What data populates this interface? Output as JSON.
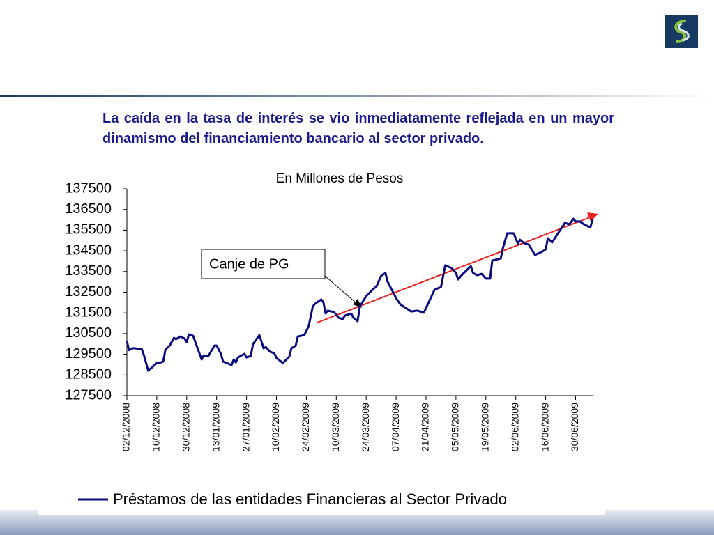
{
  "chart_data": {
    "type": "line",
    "title": "La caída en la tasa de interés se vio inmediatamente reflejada en un mayor dinamismo del financiamiento bancario al sector privado.",
    "subtitle": "En Millones de Pesos",
    "annotations": [
      "Canje de PG"
    ],
    "x": [
      "02/12/2008",
      "03/12/2008",
      "05/12/2008",
      "09/12/2008",
      "10/12/2008",
      "12/12/2008",
      "16/12/2008",
      "18/12/2008",
      "19/12/2008",
      "20/12/2008",
      "22/12/2008",
      "24/12/2008",
      "25/12/2008",
      "27/12/2008",
      "29/12/2008",
      "30/12/2008",
      "31/12/2008",
      "02/01/2009",
      "06/01/2009",
      "07/01/2009",
      "09/01/2009",
      "12/01/2009",
      "13/01/2009",
      "15/01/2009",
      "16/01/2009",
      "20/01/2009",
      "21/01/2009",
      "22/01/2009",
      "23/01/2009",
      "26/01/2009",
      "27/01/2009",
      "29/01/2009",
      "30/01/2009",
      "02/02/2009",
      "04/02/2009",
      "05/02/2009",
      "07/02/2009",
      "09/02/2009",
      "10/02/2009",
      "13/02/2009",
      "16/02/2009",
      "17/02/2009",
      "19/02/2009",
      "20/02/2009",
      "23/02/2009",
      "25/02/2009",
      "27/02/2009",
      "28/02/2009",
      "03/03/2009",
      "04/03/2009",
      "05/03/2009",
      "06/03/2009",
      "09/03/2009",
      "11/03/2009",
      "13/03/2009",
      "14/03/2009",
      "17/03/2009",
      "18/03/2009",
      "20/03/2009",
      "21/03/2009",
      "24/03/2009",
      "27/03/2009",
      "29/03/2009",
      "31/03/2009",
      "02/04/2009",
      "03/04/2009",
      "07/04/2009",
      "09/04/2009",
      "14/04/2009",
      "17/04/2009",
      "20/04/2009",
      "25/04/2009",
      "28/04/2009",
      "30/04/2009",
      "03/05/2009",
      "05/05/2009",
      "06/05/2009",
      "08/05/2009",
      "12/05/2009",
      "13/05/2009",
      "15/05/2009",
      "17/05/2009",
      "19/05/2009",
      "21/05/2009",
      "22/05/2009",
      "26/05/2009",
      "27/05/2009",
      "29/05/2009",
      "01/06/2009",
      "03/06/2009",
      "04/06/2009",
      "06/06/2009",
      "08/06/2009",
      "11/06/2009",
      "14/06/2009",
      "16/06/2009",
      "17/06/2009",
      "19/06/2009",
      "25/06/2009",
      "27/06/2009",
      "29/06/2009",
      "30/06/2009",
      "02/07/2009",
      "04/07/2009",
      "06/07/2009",
      "07/07/2009",
      "08/07/2009"
    ],
    "series": [
      {
        "name": "Préstamos de las entidades Financieras al Sector Privado",
        "color": "#0a0a80",
        "values": [
          130130,
          129700,
          129800,
          129750,
          129450,
          128710,
          129080,
          129110,
          129150,
          129720,
          129920,
          130290,
          130230,
          130360,
          130260,
          130090,
          130460,
          130390,
          129250,
          129450,
          129390,
          129920,
          129920,
          129520,
          129150,
          128980,
          129250,
          129110,
          129350,
          129520,
          129350,
          129420,
          129990,
          130430,
          129790,
          129850,
          129620,
          129550,
          129320,
          129080,
          129390,
          129790,
          129920,
          130360,
          130430,
          130830,
          131810,
          131940,
          132150,
          132010,
          131470,
          131610,
          131540,
          131270,
          131200,
          131370,
          131470,
          131270,
          131100,
          131810,
          132310,
          132620,
          132820,
          133290,
          133430,
          133020,
          132210,
          131910,
          131570,
          131610,
          131510,
          132620,
          132750,
          133800,
          133660,
          133430,
          133120,
          133360,
          133760,
          133430,
          133320,
          133390,
          133160,
          133160,
          134030,
          134130,
          134640,
          135350,
          135350,
          134840,
          135040,
          134870,
          134810,
          134300,
          134440,
          134570,
          135110,
          134910,
          135850,
          135780,
          136050,
          135920,
          135920,
          135780,
          135680,
          135650,
          136050
        ]
      }
    ],
    "xlim": [
      "02/12/2008",
      "08/07/2009"
    ],
    "xticks": [
      "02/12/2008",
      "16/12/2008",
      "30/12/2008",
      "13/01/2009",
      "27/01/2009",
      "10/02/2009",
      "24/02/2009",
      "10/03/2009",
      "24/03/2009",
      "07/04/2009",
      "21/04/2009",
      "05/05/2009",
      "19/05/2009",
      "02/06/2009",
      "16/06/2009",
      "30/06/2009"
    ],
    "ylim": [
      127500,
      137500
    ],
    "yticks": [
      127500,
      128500,
      129500,
      130500,
      131500,
      132500,
      133500,
      134500,
      135500,
      136500,
      137500
    ]
  }
}
